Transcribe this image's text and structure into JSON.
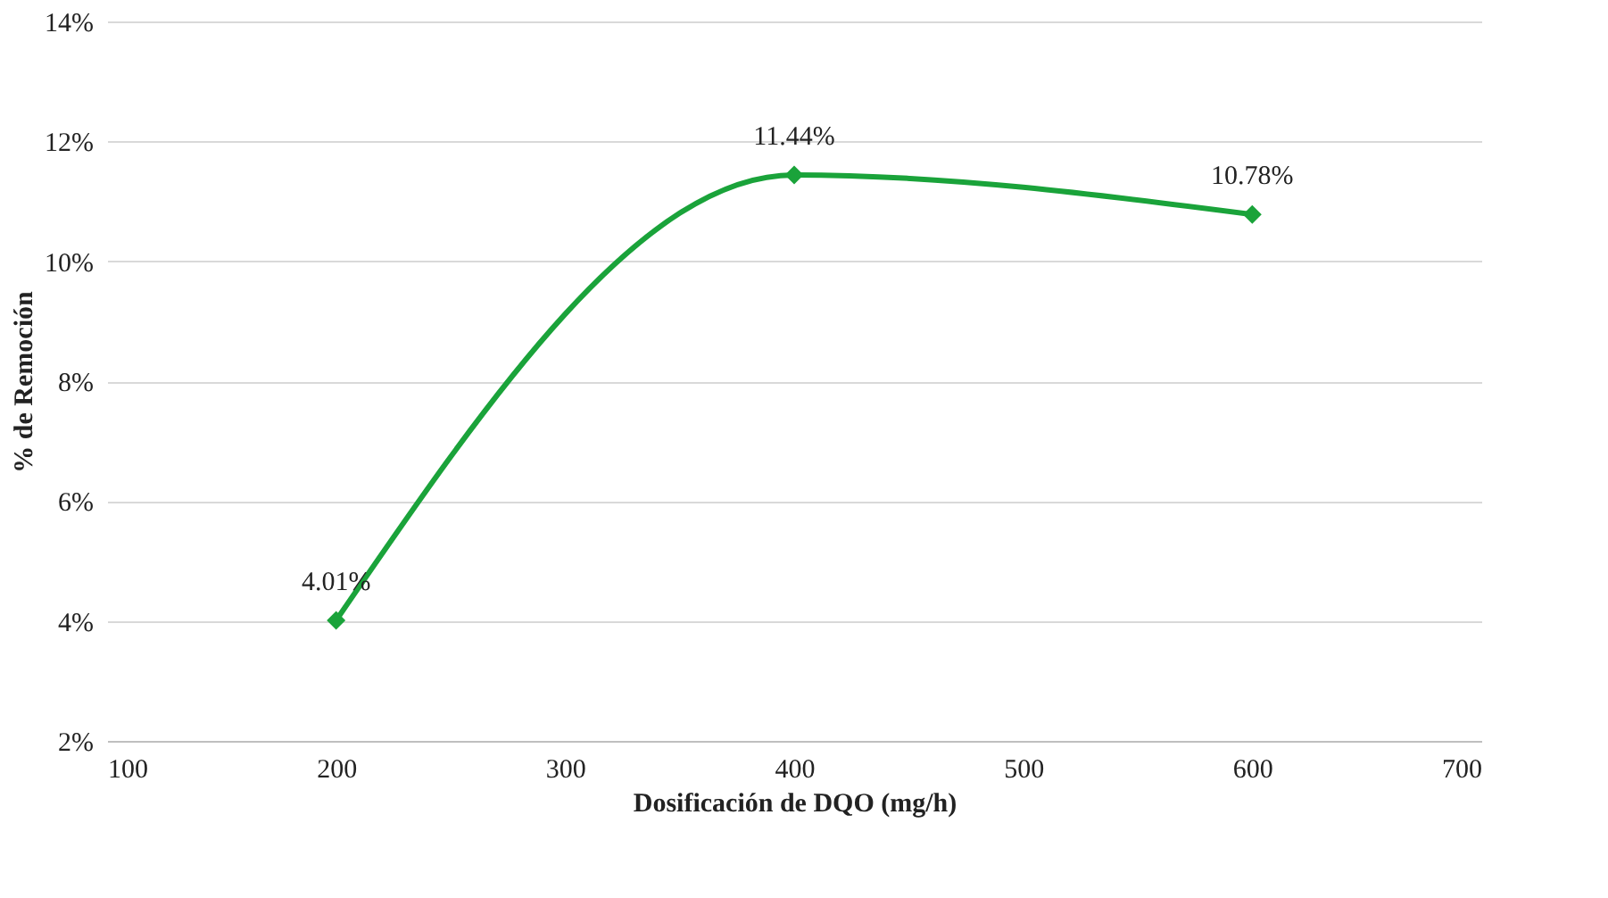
{
  "chart_data": {
    "type": "line",
    "xlabel": "Dosificación de DQO (mg/h)",
    "ylabel": "% de Remoción",
    "x": [
      200,
      400,
      600
    ],
    "series": [
      {
        "color": "#1aa33a",
        "values": [
          4.01,
          11.44,
          10.78
        ],
        "value_labels": [
          "4.01%",
          "11.44%",
          "10.78%"
        ]
      }
    ],
    "xlim": [
      100,
      700
    ],
    "xticks": [
      100,
      200,
      300,
      400,
      500,
      600,
      700
    ],
    "ylim": [
      2,
      14
    ],
    "yticks": [
      {
        "value": 2,
        "label": "2%"
      },
      {
        "value": 4,
        "label": "4%"
      },
      {
        "value": 6,
        "label": "6%"
      },
      {
        "value": 8,
        "label": "8%"
      },
      {
        "value": 10,
        "label": "10%"
      },
      {
        "value": 12,
        "label": "12%"
      },
      {
        "value": 14,
        "label": "14%"
      }
    ],
    "grid": "y",
    "marker": "diamond",
    "line_style": "solid"
  }
}
